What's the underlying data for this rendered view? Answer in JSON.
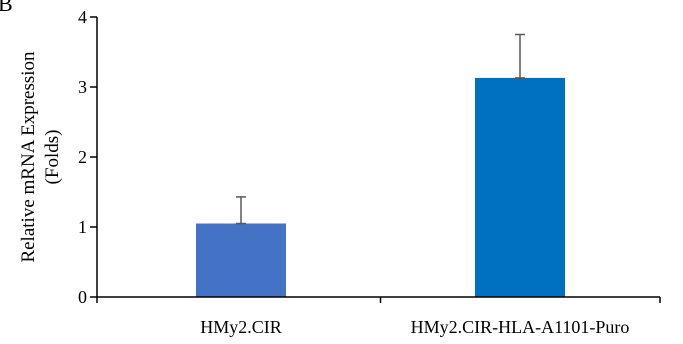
{
  "panel_label": "B",
  "chart_data": {
    "type": "bar",
    "categories": [
      "HMy2.CIR",
      "HMy2.CIR-HLA-A1101-Puro"
    ],
    "values": [
      1.05,
      3.13
    ],
    "error": [
      0.38,
      0.62
    ],
    "colors": [
      "#4472C4",
      "#0070C0"
    ],
    "ylabel_line1": "Relative mRNA Expression",
    "ylabel_line2": "(Folds)",
    "ylim": [
      0,
      4
    ],
    "yticks": [
      0,
      1,
      2,
      3,
      4
    ],
    "ytick_labels": [
      "0",
      "1",
      "2",
      "3",
      "4"
    ],
    "grid": false,
    "legend": "none"
  }
}
